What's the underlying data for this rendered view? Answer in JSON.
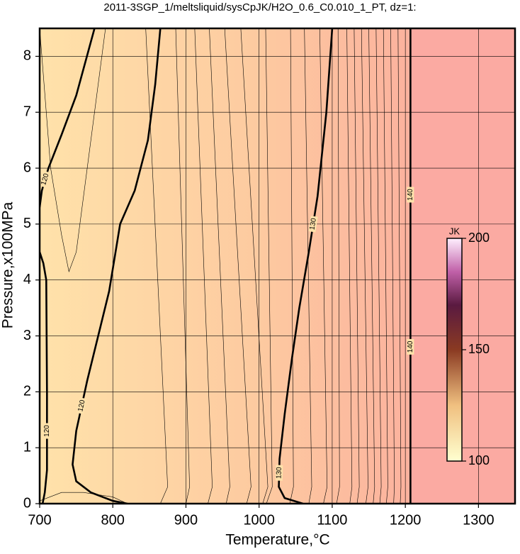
{
  "chart_data": {
    "type": "contour",
    "title": "2011-3SGP_1/meltsliquid/sysCpJK/H2O_0.6_C0.010_1_PT, dz=1:",
    "xlabel": "Temperature,°C",
    "ylabel": "Pressure,x100MPa",
    "xlim": [
      700,
      1350
    ],
    "ylim": [
      0,
      8.5
    ],
    "xticks": [
      700,
      800,
      900,
      1000,
      1100,
      1200,
      1300
    ],
    "yticks": [
      0,
      1,
      2,
      3,
      4,
      5,
      6,
      7,
      8
    ],
    "grid": true,
    "background_stops": [
      {
        "x": 700,
        "color": "#ffe2aa"
      },
      {
        "x": 1000,
        "color": "#fdcaa0"
      },
      {
        "x": 1205,
        "color": "#fcb29e"
      },
      {
        "x": 1207,
        "color": "#fbaaa2"
      },
      {
        "x": 1350,
        "color": "#fbaaa2"
      }
    ],
    "contours": [
      {
        "level": 120,
        "bold": true,
        "x": [
          704,
          707,
          710,
          710,
          709,
          705,
          700
        ],
        "y": [
          0,
          0.2,
          0.6,
          2,
          4,
          4.3,
          4.5
        ]
      },
      {
        "level": 120,
        "bold": true,
        "x": [
          700,
          703,
          712,
          730,
          750,
          775
        ],
        "y": [
          5.3,
          5.6,
          6.0,
          6.6,
          7.3,
          8.5
        ]
      },
      {
        "level": 120,
        "bold": true,
        "x": [
          820,
          800,
          770,
          750,
          745,
          750,
          765,
          780,
          795,
          805,
          810,
          830,
          848,
          858,
          865
        ],
        "y": [
          0,
          0.05,
          0.2,
          0.4,
          0.7,
          1.3,
          2.2,
          3.0,
          3.8,
          4.6,
          5.0,
          5.6,
          6.5,
          7.5,
          8.5
        ]
      },
      {
        "level": 130,
        "bold": true,
        "x": [
          1060,
          1035,
          1027,
          1028,
          1035,
          1045,
          1055,
          1068,
          1080,
          1092,
          1100
        ],
        "y": [
          0,
          0.1,
          0.3,
          0.8,
          1.6,
          2.6,
          3.5,
          4.5,
          5.5,
          7.0,
          8.5
        ]
      },
      {
        "level": 140,
        "bold": true,
        "x": [
          1207,
          1207
        ],
        "y": [
          0,
          8.5
        ]
      },
      {
        "bold": false,
        "x": [
          700,
          730,
          760,
          800,
          820
        ],
        "y": [
          0.05,
          0.2,
          0.2,
          0.12,
          0
        ]
      },
      {
        "bold": false,
        "x": [
          700,
          715,
          730,
          740,
          750,
          790
        ],
        "y": [
          8.5,
          6.0,
          4.8,
          4.15,
          4.5,
          8.5
        ]
      },
      {
        "bold": false,
        "x": [
          865,
          875,
          845
        ],
        "y": [
          0,
          0.3,
          8.5
        ]
      },
      {
        "bold": false,
        "x": [
          900,
          905,
          886
        ],
        "y": [
          0,
          0.3,
          8.5
        ]
      },
      {
        "bold": false,
        "x": [
          930,
          936,
          912
        ],
        "y": [
          0,
          0.3,
          8.5
        ]
      },
      {
        "bold": false,
        "x": [
          955,
          960,
          932
        ],
        "y": [
          0,
          0.3,
          8.5
        ]
      },
      {
        "bold": false,
        "x": [
          983,
          989,
          953
        ],
        "y": [
          0,
          0.3,
          8.5
        ]
      },
      {
        "bold": false,
        "x": [
          1005,
          1012,
          975
        ],
        "y": [
          0,
          0.3,
          8.5
        ]
      },
      {
        "bold": false,
        "x": [
          1010,
          1018,
          1009
        ],
        "y": [
          0,
          0.3,
          8.5
        ]
      },
      {
        "bold": false,
        "x": [
          1042,
          1047,
          1043
        ],
        "y": [
          0,
          0.3,
          8.5
        ]
      },
      {
        "bold": false,
        "x": [
          1068,
          1072,
          1062
        ],
        "y": [
          0,
          0.3,
          8.5
        ]
      },
      {
        "bold": false,
        "x": [
          1088,
          1093,
          1083
        ],
        "y": [
          0,
          0.3,
          8.5
        ]
      },
      {
        "bold": false,
        "x": [
          1106,
          1110,
          1108
        ],
        "y": [
          0,
          0.3,
          8.5
        ]
      },
      {
        "bold": false,
        "x": [
          1124,
          1127,
          1120
        ],
        "y": [
          0,
          0.3,
          8.5
        ]
      },
      {
        "bold": false,
        "x": [
          1134,
          1137,
          1130
        ],
        "y": [
          0,
          0.3,
          8.5
        ]
      },
      {
        "bold": false,
        "x": [
          1146,
          1149,
          1140
        ],
        "y": [
          0,
          0.3,
          8.5
        ]
      },
      {
        "bold": false,
        "x": [
          1156,
          1158,
          1150
        ],
        "y": [
          0,
          0.3,
          8.5
        ]
      },
      {
        "bold": false,
        "x": [
          1165,
          1167,
          1160
        ],
        "y": [
          0,
          0.3,
          8.5
        ]
      },
      {
        "bold": false,
        "x": [
          1174,
          1176,
          1170
        ],
        "y": [
          0,
          0.3,
          8.5
        ]
      },
      {
        "bold": false,
        "x": [
          1184,
          1185,
          1180
        ],
        "y": [
          0,
          0.3,
          8.5
        ]
      },
      {
        "bold": false,
        "x": [
          1193,
          1194,
          1190
        ],
        "y": [
          0,
          0.3,
          8.5
        ]
      }
    ],
    "colorbar": {
      "label": "JK",
      "lim": [
        100,
        200
      ],
      "ticks": [
        100,
        150,
        200
      ],
      "stops": [
        {
          "value": 100,
          "color": "#ffffd0"
        },
        {
          "value": 125,
          "color": "#f0c080"
        },
        {
          "value": 150,
          "color": "#8a3a22"
        },
        {
          "value": 170,
          "color": "#5a1a40"
        },
        {
          "value": 185,
          "color": "#c060a8"
        },
        {
          "value": 200,
          "color": "#fff0ff"
        }
      ]
    }
  }
}
